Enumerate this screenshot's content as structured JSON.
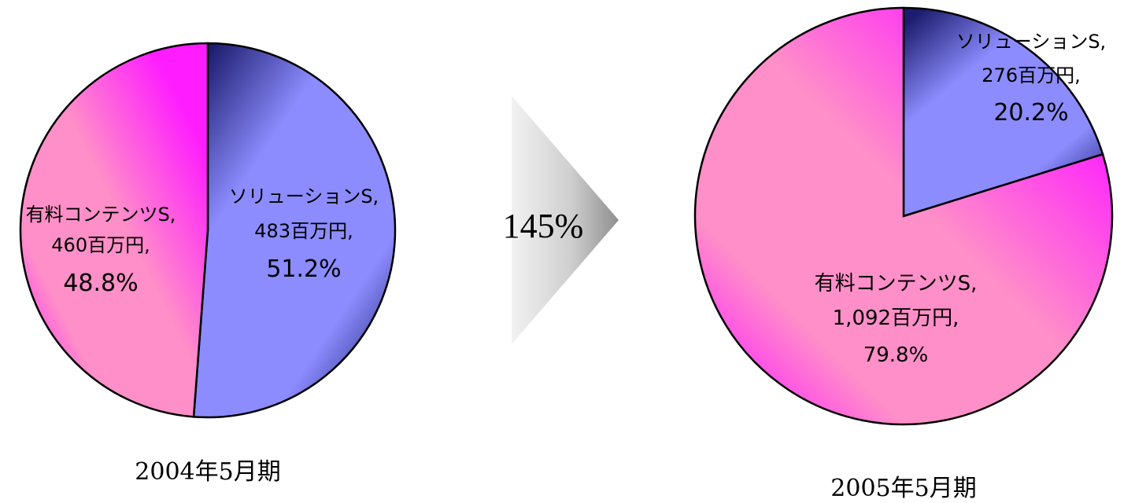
{
  "chart_data": [
    {
      "type": "pie",
      "caption": "2004年5月期",
      "slices": [
        {
          "name": "ソリューションS",
          "value_label": "483百万円",
          "value": 483,
          "unit": "百万円",
          "percent": 51.2,
          "percent_label": "51.2%",
          "color": "#8c8cff",
          "color_dark": "#1c1c6e"
        },
        {
          "name": "有料コンテンツS",
          "value_label": "460百万円",
          "value": 460,
          "unit": "百万円",
          "percent": 48.8,
          "percent_label": "48.8%",
          "color": "#ff8fc8",
          "color_dark": "#ff1cff"
        }
      ]
    },
    {
      "type": "pie",
      "caption": "2005年5月期",
      "slices": [
        {
          "name": "ソリューションS",
          "value_label": "276百万円",
          "value": 276,
          "unit": "百万円",
          "percent": 20.2,
          "percent_label": "20.2%",
          "color": "#8c8cff",
          "color_dark": "#1c1c6e"
        },
        {
          "name": "有料コンテンツS",
          "value_label": "1,092百万円",
          "value": 1092,
          "unit": "百万円",
          "percent": 79.8,
          "percent_label": "79.8%",
          "color": "#ff8fc8",
          "color_dark": "#ff1cff"
        }
      ]
    }
  ],
  "growth": {
    "label": "145%"
  }
}
